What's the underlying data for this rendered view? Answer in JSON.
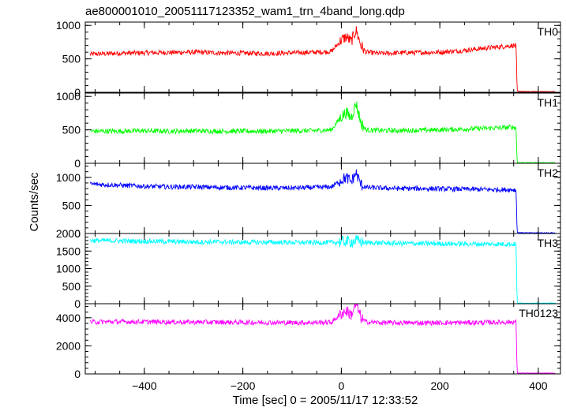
{
  "chart_data": {
    "type": "line",
    "title": "ae800001010_20051117123352_wam1_trn_4band_long.qdp",
    "xlabel": "Time [sec] 0 = 2005/11/17 12:33:52",
    "ylabel": "Counts/sec",
    "xlim": [
      -520,
      445
    ],
    "xticks": [
      -400,
      -200,
      0,
      200,
      400
    ],
    "xtick_labels": [
      "−400",
      "−200",
      "0",
      "200",
      "400"
    ],
    "grid": false,
    "panels": [
      {
        "name": "TH0",
        "color": "#ff0000",
        "ylim": [
          0,
          1050
        ],
        "yticks": [
          0,
          500,
          1000
        ],
        "ytick_labels": [
          "0",
          "500",
          "1000"
        ],
        "series": {
          "x": [
            -510,
            -450,
            -400,
            -350,
            -300,
            -250,
            -200,
            -150,
            -100,
            -50,
            -20,
            0,
            10,
            20,
            30,
            40,
            50,
            80,
            120,
            160,
            200,
            240,
            280,
            320,
            350,
            355,
            357,
            360,
            380,
            400,
            420,
            435
          ],
          "y": [
            570,
            585,
            590,
            595,
            600,
            590,
            585,
            580,
            590,
            600,
            610,
            780,
            830,
            760,
            930,
            700,
            600,
            580,
            590,
            595,
            600,
            620,
            650,
            680,
            700,
            690,
            20,
            15,
            10,
            10,
            10,
            10
          ]
        }
      },
      {
        "name": "TH1",
        "color": "#00ff00",
        "ylim": [
          0,
          1050
        ],
        "yticks": [
          0,
          500,
          1000
        ],
        "ytick_labels": [
          "0",
          "500",
          "1000"
        ],
        "series": {
          "x": [
            -510,
            -450,
            -400,
            -350,
            -300,
            -250,
            -200,
            -150,
            -100,
            -50,
            -20,
            0,
            10,
            20,
            30,
            40,
            50,
            80,
            120,
            160,
            200,
            240,
            280,
            320,
            350,
            355,
            357,
            360,
            380,
            400,
            420,
            435
          ],
          "y": [
            480,
            480,
            485,
            480,
            485,
            480,
            480,
            480,
            485,
            490,
            500,
            700,
            760,
            680,
            900,
            600,
            500,
            490,
            490,
            495,
            500,
            510,
            520,
            530,
            540,
            530,
            10,
            10,
            8,
            8,
            8,
            8
          ]
        }
      },
      {
        "name": "TH2",
        "color": "#0000ff",
        "ylim": [
          0,
          1250
        ],
        "yticks": [
          0,
          500,
          1000
        ],
        "ytick_labels": [
          "0",
          "500",
          "1000"
        ],
        "series": {
          "x": [
            -510,
            -450,
            -400,
            -350,
            -300,
            -250,
            -200,
            -150,
            -100,
            -50,
            -20,
            0,
            10,
            20,
            30,
            40,
            50,
            80,
            120,
            160,
            200,
            240,
            280,
            320,
            350,
            355,
            357,
            360,
            380,
            400,
            420,
            435
          ],
          "y": [
            880,
            860,
            840,
            830,
            830,
            820,
            815,
            810,
            810,
            820,
            830,
            950,
            1000,
            920,
            1080,
            870,
            820,
            810,
            800,
            800,
            795,
            790,
            785,
            780,
            780,
            770,
            20,
            15,
            12,
            12,
            12,
            12
          ]
        }
      },
      {
        "name": "TH3",
        "color": "#00ffff",
        "ylim": [
          0,
          2000
        ],
        "yticks": [
          0,
          500,
          1000,
          1500,
          2000
        ],
        "ytick_labels": [
          "0",
          "500",
          "1000",
          "1500",
          "2000"
        ],
        "series": {
          "x": [
            -510,
            -450,
            -400,
            -350,
            -300,
            -250,
            -200,
            -150,
            -100,
            -50,
            -20,
            0,
            10,
            20,
            30,
            40,
            50,
            80,
            120,
            160,
            200,
            240,
            280,
            320,
            350,
            355,
            357,
            360,
            380,
            400,
            420,
            435
          ],
          "y": [
            1800,
            1790,
            1780,
            1770,
            1760,
            1760,
            1750,
            1750,
            1745,
            1740,
            1745,
            1760,
            1780,
            1760,
            1800,
            1760,
            1740,
            1730,
            1720,
            1715,
            1710,
            1705,
            1700,
            1700,
            1700,
            1690,
            30,
            20,
            15,
            15,
            15,
            15
          ]
        }
      },
      {
        "name": "TH0123",
        "color": "#ff00ff",
        "ylim": [
          0,
          5000
        ],
        "yticks": [
          0,
          2000,
          4000
        ],
        "ytick_labels": [
          "0",
          "2000",
          "4000"
        ],
        "series": {
          "x": [
            -510,
            -450,
            -400,
            -350,
            -300,
            -250,
            -200,
            -150,
            -100,
            -50,
            -20,
            0,
            10,
            20,
            30,
            40,
            50,
            80,
            120,
            160,
            200,
            240,
            280,
            320,
            350,
            355,
            357,
            360,
            380,
            400,
            420,
            435
          ],
          "y": [
            3700,
            3720,
            3710,
            3700,
            3690,
            3680,
            3670,
            3660,
            3650,
            3660,
            3680,
            4300,
            4500,
            4200,
            5000,
            4000,
            3700,
            3650,
            3640,
            3640,
            3640,
            3650,
            3660,
            3680,
            3700,
            3690,
            80,
            60,
            50,
            50,
            50,
            50
          ]
        }
      }
    ]
  }
}
